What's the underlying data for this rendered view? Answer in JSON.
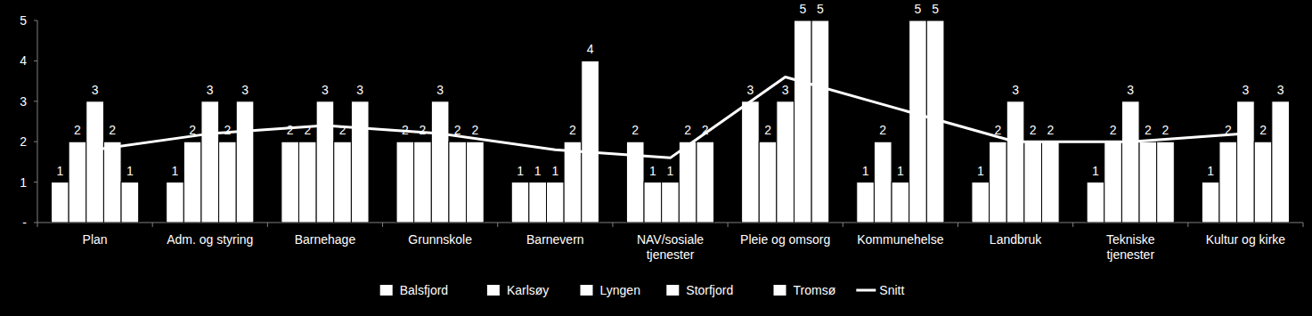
{
  "chart_data": {
    "type": "bar",
    "categories": [
      "Plan",
      "Adm. og styring",
      "Barnehage",
      "Grunnskole",
      "Barnevern",
      "NAV/sosiale tjenester",
      "Pleie og omsorg",
      "Kommunehelse",
      "Landbruk",
      "Tekniske tjenester",
      "Kultur og kirke"
    ],
    "series": [
      {
        "name": "Balsfjord",
        "color": "#ffffff",
        "values": [
          1,
          1,
          2,
          2,
          1,
          2,
          3,
          1,
          1,
          1,
          1
        ]
      },
      {
        "name": "Karlsøy",
        "color": "#ffffff",
        "values": [
          2,
          2,
          2,
          2,
          1,
          1,
          2,
          2,
          2,
          2,
          2
        ]
      },
      {
        "name": "Lyngen",
        "color": "#ffffff",
        "values": [
          3,
          3,
          3,
          3,
          1,
          1,
          3,
          1,
          3,
          3,
          3
        ]
      },
      {
        "name": "Storfjord",
        "color": "#ffffff",
        "values": [
          2,
          2,
          2,
          2,
          2,
          2,
          5,
          5,
          2,
          2,
          2
        ]
      },
      {
        "name": "Tromsø",
        "color": "#ffffff",
        "values": [
          1,
          3,
          3,
          2,
          4,
          2,
          5,
          5,
          2,
          2,
          3
        ]
      },
      {
        "name": "Snitt",
        "type": "line",
        "color": "#ffffff",
        "values": [
          1.8,
          2.2,
          2.4,
          2.2,
          1.8,
          1.6,
          3.6,
          2.8,
          2.0,
          2.0,
          2.2
        ]
      }
    ],
    "ylim": [
      0,
      5
    ],
    "yticks": [
      {
        "value": 0,
        "label": "-"
      },
      1,
      2,
      3,
      4,
      5
    ],
    "grid": false,
    "legend": "bottom",
    "data_labels": true
  }
}
